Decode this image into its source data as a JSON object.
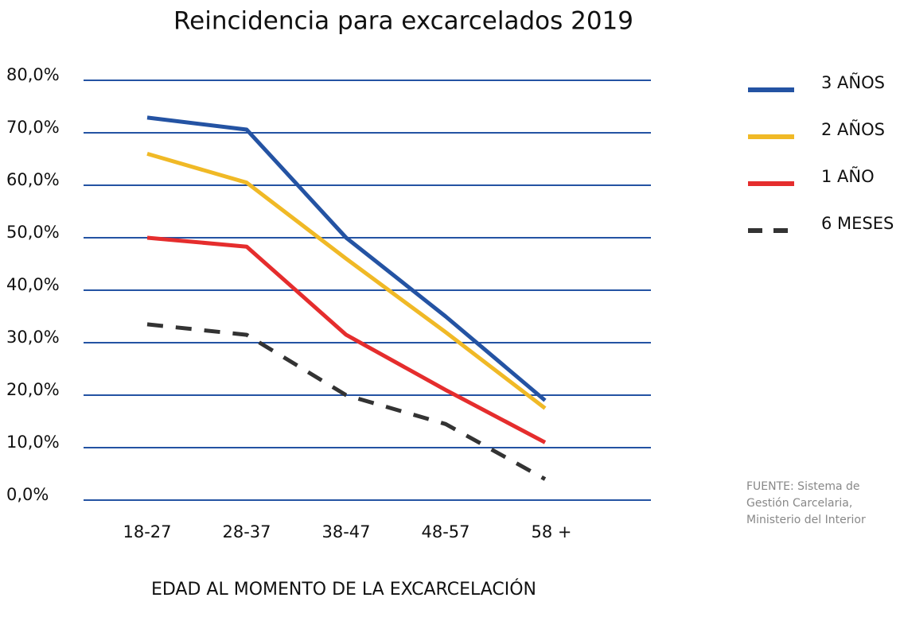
{
  "chart_data": {
    "type": "line",
    "title": "Reincidencia para excarcelados 2019",
    "x_label": "EDAD AL MOMENTO DE LA EXCARCELACIÓN",
    "categories": [
      "18-27",
      "28-37",
      "38-47",
      "48-57",
      "58 +"
    ],
    "series": [
      {
        "name": "3 AÑOS",
        "color": "#2453a3",
        "style": "solid",
        "values": [
          72.9,
          70.6,
          50,
          35,
          19
        ]
      },
      {
        "name": "2 AÑOS",
        "color": "#f0b926",
        "style": "solid",
        "values": [
          66,
          60.5,
          46,
          32,
          17.5
        ]
      },
      {
        "name": "1 AÑO",
        "color": "#e52d2d",
        "style": "solid",
        "values": [
          50,
          48.3,
          31.5,
          21,
          11
        ]
      },
      {
        "name": "6 MESES",
        "color": "#333333",
        "style": "dashed",
        "values": [
          33.5,
          31.5,
          20,
          14.5,
          4
        ]
      }
    ],
    "ylim": [
      0,
      80
    ],
    "yticks": [
      {
        "value": 0,
        "label": "0,0%"
      },
      {
        "value": 10,
        "label": "10,0%"
      },
      {
        "value": 20,
        "label": "20,0%"
      },
      {
        "value": 30,
        "label": "30,0%"
      },
      {
        "value": 40,
        "label": "40,0%"
      },
      {
        "value": 50,
        "label": "50,0%"
      },
      {
        "value": 60,
        "label": "60,0%"
      },
      {
        "value": 70,
        "label": "70,0%"
      },
      {
        "value": 80,
        "label": "80,0%"
      }
    ],
    "grid": true,
    "grid_color": "#2453a3",
    "legend": "right",
    "source": [
      "FUENTE: Sistema de",
      "Gestión Carcelaria,",
      "Ministerio del Interior"
    ]
  }
}
